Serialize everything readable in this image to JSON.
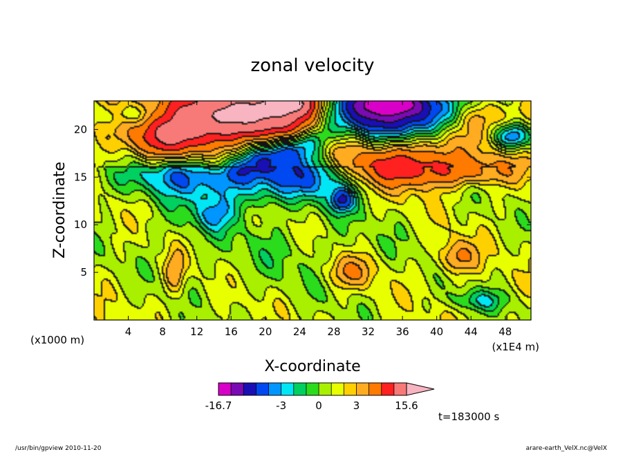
{
  "chart_data": {
    "type": "heatmap",
    "title": "zonal velocity",
    "xlabel": "X-coordinate",
    "ylabel": "Z-coordinate",
    "x_unit_label": "(x1E4 m)",
    "y_unit_label": "(x1000 m)",
    "xlim": [
      0,
      51
    ],
    "ylim": [
      0,
      23
    ],
    "x_ticks": [
      "4",
      "8",
      "12",
      "16",
      "20",
      "24",
      "28",
      "32",
      "36",
      "40",
      "44",
      "48"
    ],
    "x_tick_values": [
      4,
      8,
      12,
      16,
      20,
      24,
      28,
      32,
      36,
      40,
      44,
      48
    ],
    "y_ticks": [
      "5",
      "10",
      "15",
      "20"
    ],
    "y_tick_values": [
      5,
      10,
      15,
      20
    ],
    "time_label": "t=183000 s",
    "colorbar": {
      "min_label": "-16.7",
      "max_label": "15.6",
      "labels": [
        "-3",
        "0",
        "3"
      ],
      "label_values": [
        -3,
        0,
        3
      ],
      "min": -16.7,
      "max": 15.6,
      "levels": [
        {
          "from": -16.7,
          "to": -12.0,
          "color": "#d800c8"
        },
        {
          "from": -12.0,
          "to": -8.0,
          "color": "#7a0ab4"
        },
        {
          "from": -8.0,
          "to": -5.5,
          "color": "#1a0fb4"
        },
        {
          "from": -5.5,
          "to": -4.0,
          "color": "#0048f0"
        },
        {
          "from": -4.0,
          "to": -3.0,
          "color": "#0096ff"
        },
        {
          "from": -3.0,
          "to": -2.0,
          "color": "#00e6f5"
        },
        {
          "from": -2.0,
          "to": -1.0,
          "color": "#00d060"
        },
        {
          "from": -1.0,
          "to": 0.0,
          "color": "#2bdc1c"
        },
        {
          "from": 0.0,
          "to": 1.0,
          "color": "#a8f000"
        },
        {
          "from": 1.0,
          "to": 2.0,
          "color": "#e8ff00"
        },
        {
          "from": 2.0,
          "to": 3.0,
          "color": "#ffd000"
        },
        {
          "from": 3.0,
          "to": 4.5,
          "color": "#ffac20"
        },
        {
          "from": 4.5,
          "to": 7.0,
          "color": "#ff7a00"
        },
        {
          "from": 7.0,
          "to": 10.0,
          "color": "#ff2020"
        },
        {
          "from": 10.0,
          "to": 15.6,
          "color": "#f87a78"
        }
      ],
      "overflow_color": "#f8b4c0"
    },
    "field_features": [
      {
        "x": 30,
        "z": 17.5,
        "value": -5.0,
        "sx": 11,
        "sz": 1.6,
        "rot": 0.34
      },
      {
        "x": 22,
        "z": 17.5,
        "value": -6.5,
        "sx": 6,
        "sz": 1.2,
        "rot": 0.34
      },
      {
        "x": 10,
        "z": 15.5,
        "value": -4.0,
        "sx": 3.5,
        "sz": 1.5,
        "rot": 0
      },
      {
        "x": 14,
        "z": 21.5,
        "value": 8.5,
        "sx": 6,
        "sz": 2.0,
        "rot": 0
      },
      {
        "x": 19,
        "z": 21.5,
        "value": 9.0,
        "sx": 5,
        "sz": 1.5,
        "rot": 0
      },
      {
        "x": 23,
        "z": 22.8,
        "value": 12.0,
        "sx": 2,
        "sz": 0.8,
        "rot": 0
      },
      {
        "x": 34,
        "z": 22.0,
        "value": -9.0,
        "sx": 5,
        "sz": 1.5,
        "rot": 0
      },
      {
        "x": 34.5,
        "z": 22.8,
        "value": -14.0,
        "sx": 2.5,
        "sz": 0.8,
        "rot": 0
      },
      {
        "x": 9,
        "z": 19.0,
        "value": 6.0,
        "sx": 3,
        "sz": 1.5,
        "rot": 0
      },
      {
        "x": 35,
        "z": 16.5,
        "value": 6.0,
        "sx": 5,
        "sz": 2.0,
        "rot": 0
      },
      {
        "x": 29.5,
        "z": 17.5,
        "value": 4.0,
        "sx": 3,
        "sz": 1.5,
        "rot": 0
      },
      {
        "x": 49,
        "z": 19.2,
        "value": -6.0,
        "sx": 1.5,
        "sz": 1.0,
        "rot": 0
      },
      {
        "x": 45.5,
        "z": 21.5,
        "value": 3.0,
        "sx": 3,
        "sz": 1.2,
        "rot": 0
      },
      {
        "x": 5,
        "z": 21.5,
        "value": -4.0,
        "sx": 3,
        "sz": 1.0,
        "rot": 0
      },
      {
        "x": 29,
        "z": 12.5,
        "value": -4.5,
        "sx": 0.9,
        "sz": 0.8,
        "rot": 0
      },
      {
        "x": 28.5,
        "z": 14,
        "value": -2.5,
        "sx": 3,
        "sz": 1.8,
        "rot": 0
      },
      {
        "x": 14,
        "z": 11,
        "value": -2.5,
        "sx": 1.5,
        "sz": 1.2,
        "rot": 0
      },
      {
        "x": 42,
        "z": 15.5,
        "value": 4.0,
        "sx": 6,
        "sz": 1.0,
        "rot": 0
      },
      {
        "x": 42.5,
        "z": 6.5,
        "value": 4.0,
        "sx": 1.5,
        "sz": 1.2,
        "rot": 0
      },
      {
        "x": 30,
        "z": 5.0,
        "value": 3.5,
        "sx": 2,
        "sz": 1.2,
        "rot": 0
      },
      {
        "x": 9.5,
        "z": 5.0,
        "value": 3.2,
        "sx": 0.8,
        "sz": 1.5,
        "rot": 0
      },
      {
        "x": 45,
        "z": 2.0,
        "value": -2.5,
        "sx": 2.5,
        "sz": 0.8,
        "rot": 0
      },
      {
        "x": 22,
        "z": 7.0,
        "value": -1.0,
        "sx": 9,
        "sz": 3.5,
        "rot": 0
      },
      {
        "x": 12,
        "z": 14.5,
        "value": -1.0,
        "sx": 22,
        "sz": 1.5,
        "rot": 0
      }
    ]
  },
  "footer": {
    "left": "/usr/bin/gpview   2010-11-20",
    "right": "arare-earth_VelX.nc@VelX"
  }
}
